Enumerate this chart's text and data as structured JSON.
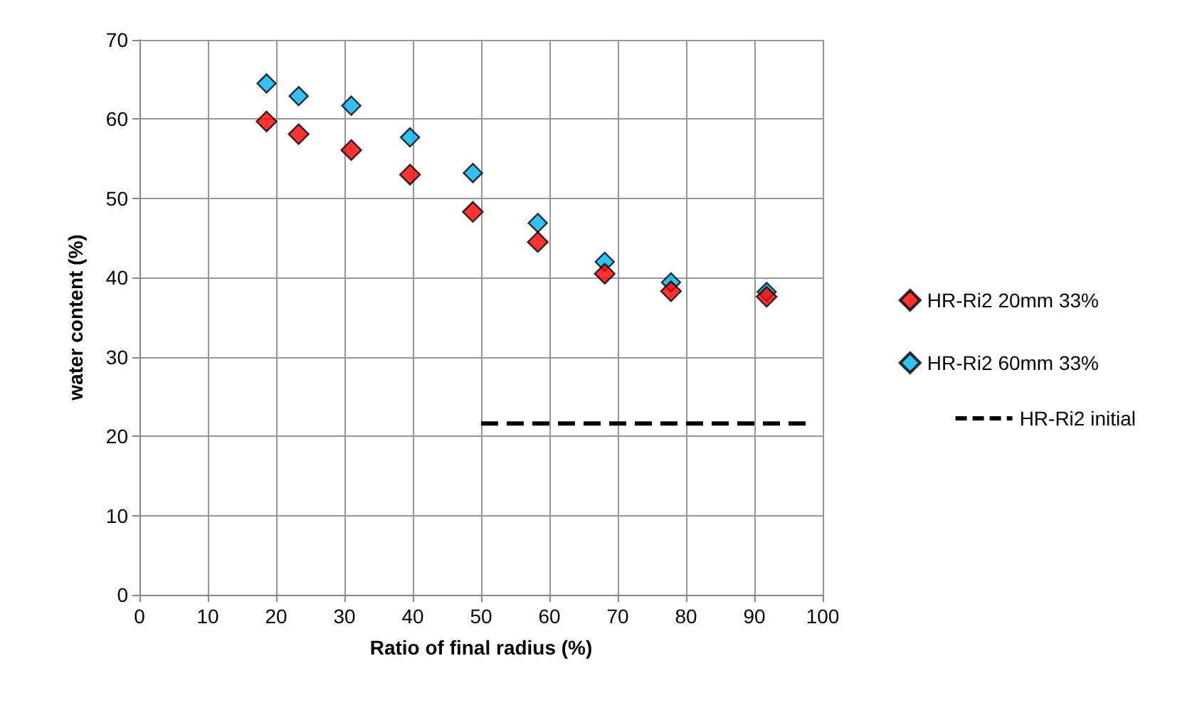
{
  "chart_data": {
    "type": "scatter",
    "xlabel": "Ratio of final radius (%)",
    "ylabel": "water content (%)",
    "xlim": [
      0,
      100
    ],
    "xticks": [
      0,
      10,
      20,
      30,
      40,
      50,
      60,
      70,
      80,
      90,
      100
    ],
    "ylim": [
      0,
      70
    ],
    "yticks": [
      0,
      10,
      20,
      30,
      40,
      50,
      60,
      70
    ],
    "grid": true,
    "legend": "right",
    "marker": "diamond",
    "series": [
      {
        "name": "HR-Ri2 20mm 33%",
        "color": "#ff0000",
        "x": [
          18.6,
          23.3,
          31,
          39.6,
          48.8,
          58.3,
          68.1,
          77.8,
          91.8
        ],
        "values": [
          59.7,
          58.1,
          56.1,
          53,
          48.3,
          44.5,
          40.5,
          38.3,
          37.6
        ]
      },
      {
        "name": "HR-Ri2 60mm 33%",
        "color": "#00b0f0",
        "x": [
          18.6,
          23.3,
          31,
          39.6,
          48.8,
          58.3,
          68.1,
          77.8,
          91.8
        ],
        "values": [
          64.5,
          62.9,
          61.7,
          57.7,
          53.2,
          46.9,
          42,
          39.4,
          38.2
        ]
      },
      {
        "name": "HR-Ri2 initial",
        "type": "line",
        "color": "#000000",
        "line_style": "dashed",
        "marker": "none",
        "x": [
          50,
          98
        ],
        "values": [
          21.6,
          21.6
        ]
      }
    ]
  }
}
